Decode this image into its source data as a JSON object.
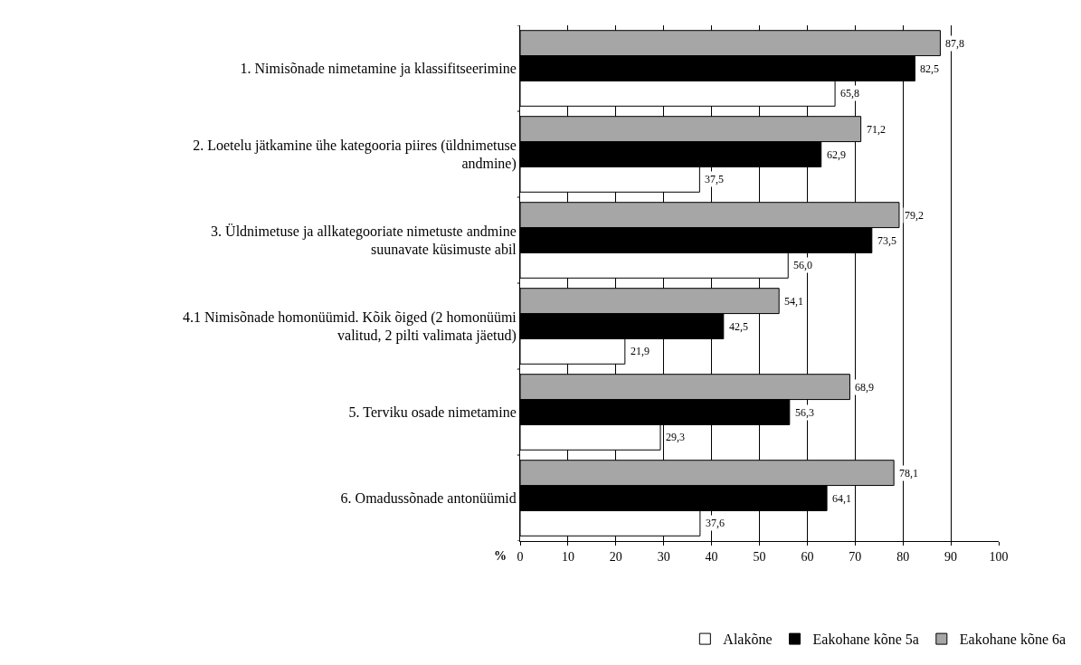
{
  "chart_data": {
    "type": "bar",
    "orientation": "horizontal",
    "xlabel": "%",
    "categories": [
      "1. Nimisõnade nimetamine ja klassifitseerimine",
      "2. Loetelu jätkamine ühe kategooria piires (üldnimetuse andmine)",
      "3. Üldnimetuse ja allkategooriate nimetuste andmine suunavate küsimuste abil",
      "4.1 Nimisõnade homonüümid. Kõik õiged (2 homonüümi valitud, 2 pilti valimata jäetud)",
      "5. Terviku osade nimetamine",
      "6. Omadussõnade antonüümid"
    ],
    "series": [
      {
        "name": "Alakõne",
        "color": "#ffffff",
        "values": [
          65.8,
          37.5,
          56.0,
          21.9,
          29.3,
          37.6
        ],
        "value_labels": [
          "65,8",
          "37,5",
          "56,0",
          "21,9",
          "29,3",
          "37,6"
        ]
      },
      {
        "name": "Eakohane kõne 5a",
        "color": "#000000",
        "values": [
          82.5,
          62.9,
          73.5,
          42.5,
          56.3,
          64.1
        ],
        "value_labels": [
          "82,5",
          "62,9",
          "73,5",
          "42,5",
          "56,3",
          "64,1"
        ]
      },
      {
        "name": "Eakohane kõne 6a",
        "color": "#a6a6a6",
        "values": [
          87.8,
          71.2,
          79.2,
          54.1,
          68.9,
          78.1
        ],
        "value_labels": [
          "87,8",
          "71,2",
          "79,2",
          "54,1",
          "68,9",
          "78,1"
        ]
      }
    ],
    "xlim": [
      0,
      100
    ],
    "xticks": [
      0,
      10,
      20,
      30,
      40,
      50,
      60,
      70,
      80,
      90,
      100
    ],
    "grid": "x",
    "legend": "bottom right"
  }
}
